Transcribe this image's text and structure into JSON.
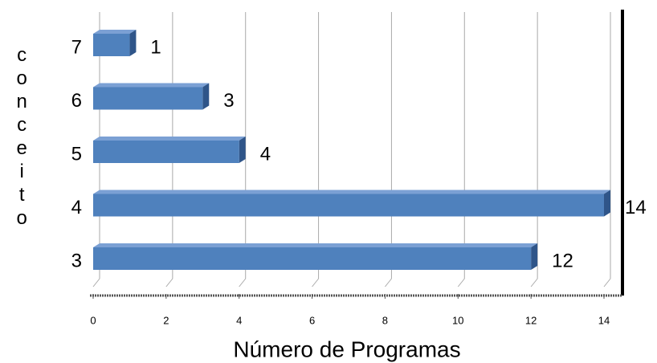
{
  "chart_data": {
    "type": "bar",
    "orientation": "horizontal",
    "ylabel": "conceito",
    "xlabel": "Número de Programas",
    "categories": [
      "3",
      "4",
      "5",
      "6",
      "7"
    ],
    "values": [
      12,
      14,
      4,
      3,
      1
    ],
    "color": "#4f81bd",
    "xlim": [
      0,
      14
    ],
    "xticks": [
      0,
      2,
      4,
      6,
      8,
      10,
      12,
      14
    ],
    "grid": true
  }
}
